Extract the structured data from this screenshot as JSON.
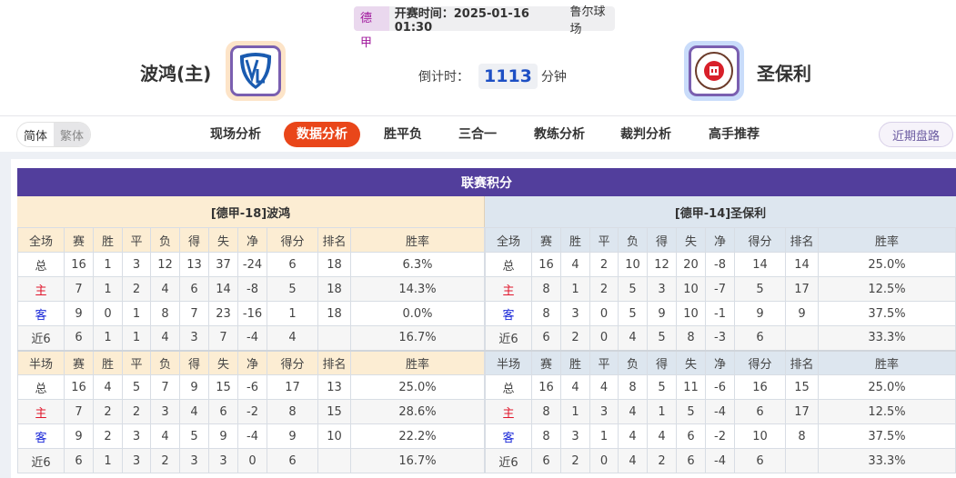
{
  "match": {
    "league": "德甲",
    "kickoff": "开赛时间：2025-01-16 01:30",
    "venue": "鲁尔球场",
    "countdown_label": "倒计时：",
    "countdown_value": "1113",
    "countdown_unit": "分钟"
  },
  "home_team": {
    "name": "波鸿(主)",
    "badge_color": "#fde4c8"
  },
  "away_team": {
    "name": "圣保利",
    "badge_color": "#c9dcfa"
  },
  "lang": {
    "simplified": "简体",
    "traditional": "繁体"
  },
  "tabs": [
    {
      "label": "现场分析"
    },
    {
      "label": "数据分析",
      "active": true
    },
    {
      "label": "胜平负"
    },
    {
      "label": "三合一"
    },
    {
      "label": "教练分析"
    },
    {
      "label": "裁判分析"
    },
    {
      "label": "高手推荐"
    }
  ],
  "recent_button": "近期盘路",
  "standings": {
    "title": "联赛积分",
    "columns_full": [
      "全场",
      "赛",
      "胜",
      "平",
      "负",
      "得",
      "失",
      "净",
      "得分",
      "排名",
      "胜率"
    ],
    "columns_half": [
      "半场",
      "赛",
      "胜",
      "平",
      "负",
      "得",
      "失",
      "净",
      "得分",
      "排名",
      "胜率"
    ],
    "home": {
      "label": "[德甲-18]波鸿",
      "full": [
        [
          "总",
          "16",
          "1",
          "3",
          "12",
          "13",
          "37",
          "-24",
          "6",
          "18",
          "6.3%"
        ],
        [
          "主",
          "7",
          "1",
          "2",
          "4",
          "6",
          "14",
          "-8",
          "5",
          "18",
          "14.3%"
        ],
        [
          "客",
          "9",
          "0",
          "1",
          "8",
          "7",
          "23",
          "-16",
          "1",
          "18",
          "0.0%"
        ],
        [
          "近6",
          "6",
          "1",
          "1",
          "4",
          "3",
          "7",
          "-4",
          "4",
          "",
          "16.7%"
        ]
      ],
      "half": [
        [
          "总",
          "16",
          "4",
          "5",
          "7",
          "9",
          "15",
          "-6",
          "17",
          "13",
          "25.0%"
        ],
        [
          "主",
          "7",
          "2",
          "2",
          "3",
          "4",
          "6",
          "-2",
          "8",
          "15",
          "28.6%"
        ],
        [
          "客",
          "9",
          "2",
          "3",
          "4",
          "5",
          "9",
          "-4",
          "9",
          "10",
          "22.2%"
        ],
        [
          "近6",
          "6",
          "1",
          "3",
          "2",
          "3",
          "3",
          "0",
          "6",
          "",
          "16.7%"
        ]
      ]
    },
    "away": {
      "label": "[德甲-14]圣保利",
      "full": [
        [
          "总",
          "16",
          "4",
          "2",
          "10",
          "12",
          "20",
          "-8",
          "14",
          "14",
          "25.0%"
        ],
        [
          "主",
          "8",
          "1",
          "2",
          "5",
          "3",
          "10",
          "-7",
          "5",
          "17",
          "12.5%"
        ],
        [
          "客",
          "8",
          "3",
          "0",
          "5",
          "9",
          "10",
          "-1",
          "9",
          "9",
          "37.5%"
        ],
        [
          "近6",
          "6",
          "2",
          "0",
          "4",
          "5",
          "8",
          "-3",
          "6",
          "",
          "33.3%"
        ]
      ],
      "half": [
        [
          "总",
          "16",
          "4",
          "4",
          "8",
          "5",
          "11",
          "-6",
          "16",
          "15",
          "25.0%"
        ],
        [
          "主",
          "8",
          "1",
          "3",
          "4",
          "1",
          "5",
          "-4",
          "6",
          "17",
          "12.5%"
        ],
        [
          "客",
          "8",
          "3",
          "1",
          "4",
          "4",
          "6",
          "-2",
          "10",
          "8",
          "37.5%"
        ],
        [
          "近6",
          "6",
          "2",
          "0",
          "4",
          "2",
          "6",
          "-4",
          "6",
          "",
          "33.3%"
        ]
      ]
    }
  }
}
